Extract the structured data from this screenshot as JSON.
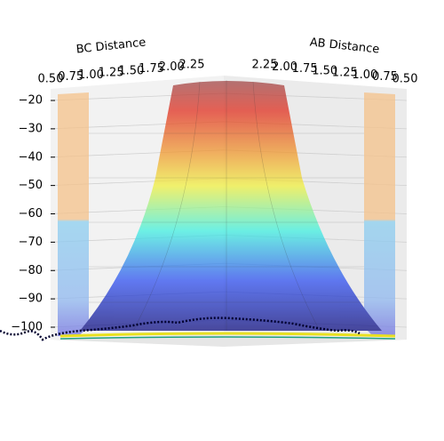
{
  "chart_data": {
    "type": "surface3d",
    "xlabel": "BC Distance",
    "ylabel": "AB Distance",
    "xticks": [
      {
        "value": 0.5,
        "label": "0.50"
      },
      {
        "value": 0.75,
        "label": "0.75"
      },
      {
        "value": 1.0,
        "label": "1.00"
      },
      {
        "value": 1.25,
        "label": "1.25"
      },
      {
        "value": 1.5,
        "label": "1.50"
      },
      {
        "value": 1.75,
        "label": "1.75"
      },
      {
        "value": 2.0,
        "label": "2.00"
      },
      {
        "value": 2.25,
        "label": "2.25"
      }
    ],
    "yticks": [
      {
        "value": 2.25,
        "label": "2.25"
      },
      {
        "value": 2.0,
        "label": "2.00"
      },
      {
        "value": 1.75,
        "label": "1.75"
      },
      {
        "value": 1.5,
        "label": "1.50"
      },
      {
        "value": 1.25,
        "label": "1.25"
      },
      {
        "value": 1.0,
        "label": "1.00"
      },
      {
        "value": 0.75,
        "label": "0.75"
      },
      {
        "value": 0.5,
        "label": "0.50"
      }
    ],
    "zticks": [
      {
        "value": -20,
        "label": "−20"
      },
      {
        "value": -30,
        "label": "−30"
      },
      {
        "value": -40,
        "label": "−40"
      },
      {
        "value": -50,
        "label": "−50"
      },
      {
        "value": -60,
        "label": "−60"
      },
      {
        "value": -70,
        "label": "−70"
      },
      {
        "value": -80,
        "label": "−80"
      },
      {
        "value": -90,
        "label": "−90"
      },
      {
        "value": -100,
        "label": "−100"
      }
    ]
  }
}
